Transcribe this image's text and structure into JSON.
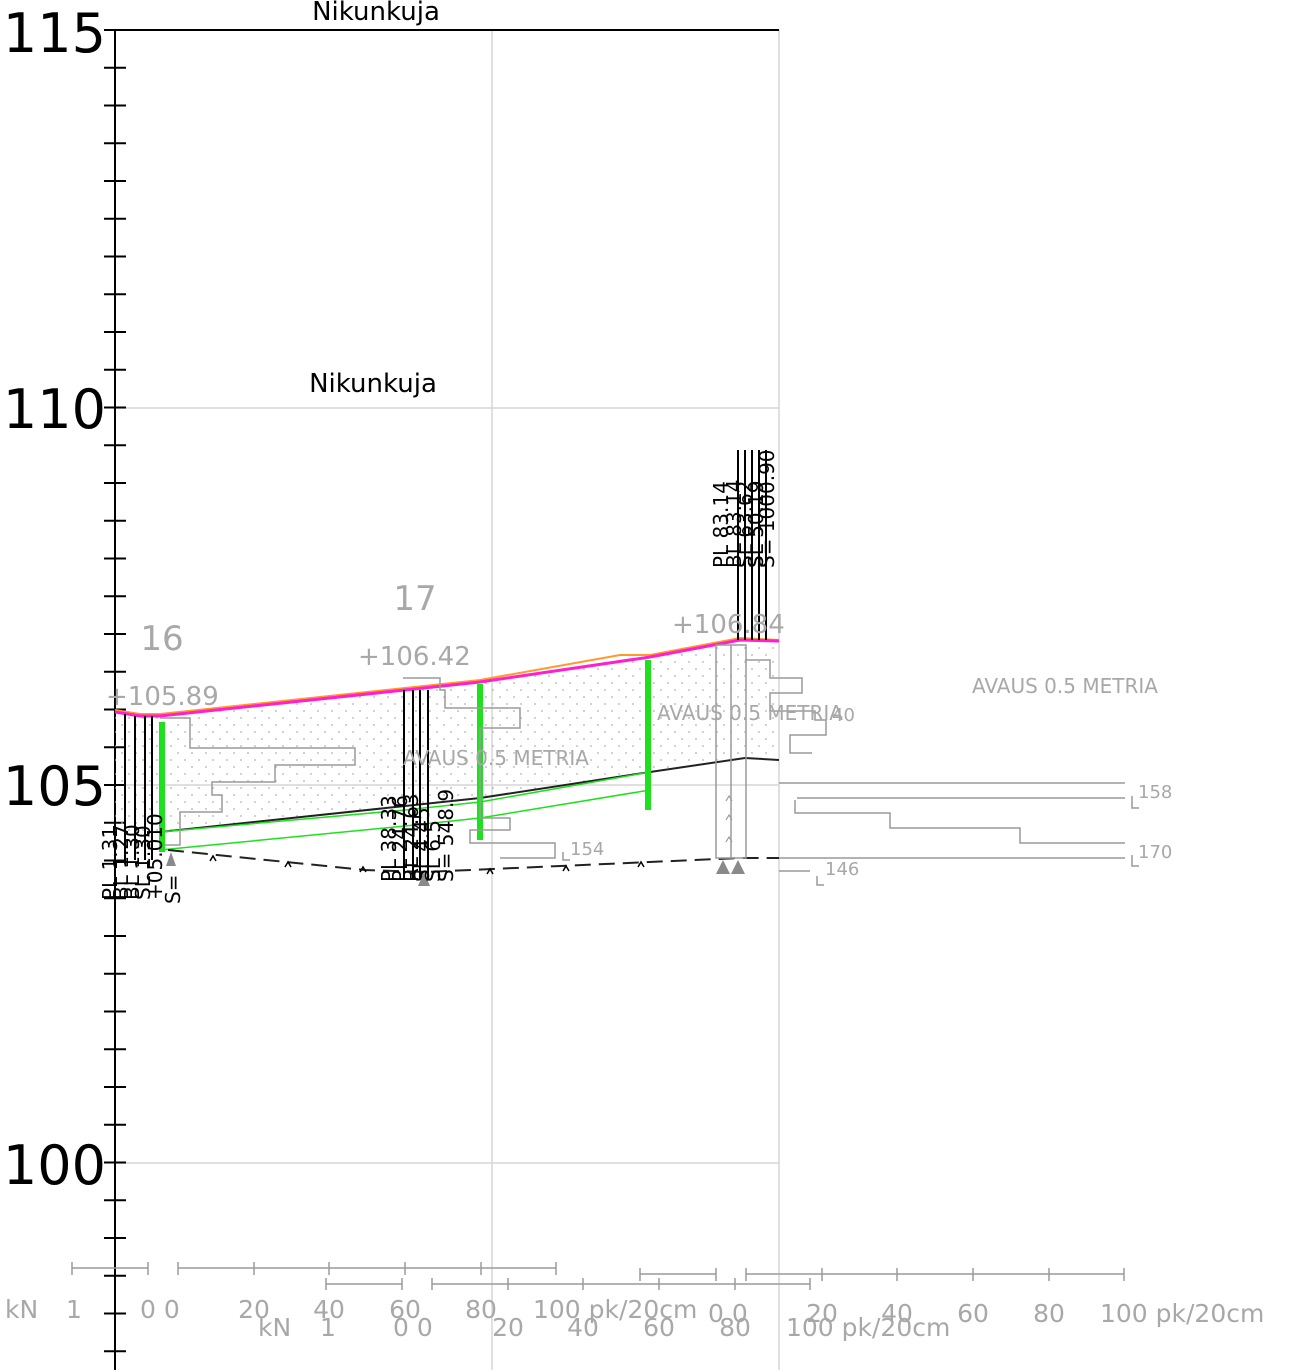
{
  "title_top": "Nikunkuja",
  "title_mid": "Nikunkuja",
  "y_axis_ticks": [
    "115",
    "110",
    "105",
    "100"
  ],
  "points": [
    {
      "id": "16",
      "elev": "+105.89",
      "labels": [
        "PL 1.31",
        "BL 1.27",
        "BL 1.30",
        "SL 1.30",
        "+05.010",
        "S=   "
      ]
    },
    {
      "id": "17",
      "elev": "+106.42",
      "labels": [
        "PL 38.33",
        "PL 24.76",
        "RL 24.63",
        "SL 4.45",
        "SL 6.5",
        "S= 548.9"
      ]
    },
    {
      "id": "",
      "elev": "+106.84",
      "labels": [
        "PL 83.14",
        "BL 83.14",
        "SL 63.62",
        "SL 50.19",
        "S= 1000.90"
      ]
    }
  ],
  "annotations": {
    "avaus_1": "AVAUS 0.5 METRIA",
    "avaus_2": "AVAUS 0.5 METRIA",
    "avaus_3": "AVAUS 0.5 METRIA",
    "n154": "154",
    "n158": "158",
    "n170": "170",
    "n146": "146",
    "n40": "40"
  },
  "scale_row_1": {
    "unit": "kN",
    "one": "1",
    "zeros": "0 0",
    "ticks": [
      "20",
      "40",
      "60",
      "80",
      "100 pk/20cm"
    ]
  },
  "scale_row_2": {
    "unit": "kN",
    "one": "1",
    "zeros": "0 0",
    "ticks": [
      "20",
      "40",
      "60",
      "80",
      "100 pk/20cm"
    ]
  },
  "scale_row_3": {
    "zeros": "0 0",
    "ticks": [
      "20",
      "40",
      "60",
      "80",
      "100 pk/20cm"
    ]
  },
  "colors": {
    "ground_surface": "#ff1fcf",
    "ground_orange": "#ff9a2a",
    "green": "#1ee01e",
    "grid": "#d6d6d6",
    "grey_text": "#a8a8a8"
  }
}
